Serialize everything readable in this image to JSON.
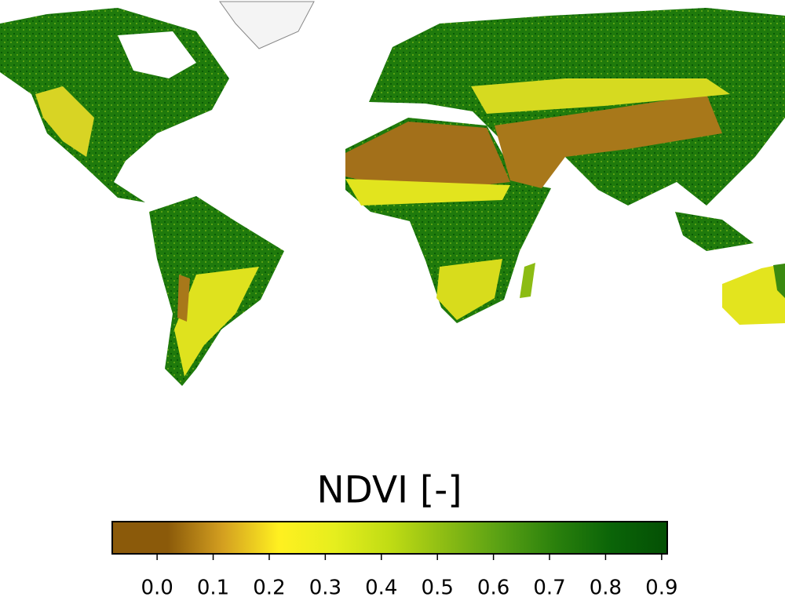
{
  "chart_data": {
    "type": "colorbar-map",
    "colorbar_label": "NDVI [-]",
    "colors": [
      "#8b5a0a",
      "#8b5a0a",
      "#d4a020",
      "#fff020",
      "#e6ee1e",
      "#c0dc14",
      "#8cbc14",
      "#58a014",
      "#2a800c",
      "#0a6408",
      "#045004"
    ],
    "xlim": [
      -0.08,
      0.91
    ],
    "xticks": [
      {
        "value": 0,
        "label": "0.0"
      },
      0.1,
      0.2,
      0.3,
      0.4,
      0.5,
      0.6,
      0.7,
      0.8,
      0.9
    ]
  }
}
